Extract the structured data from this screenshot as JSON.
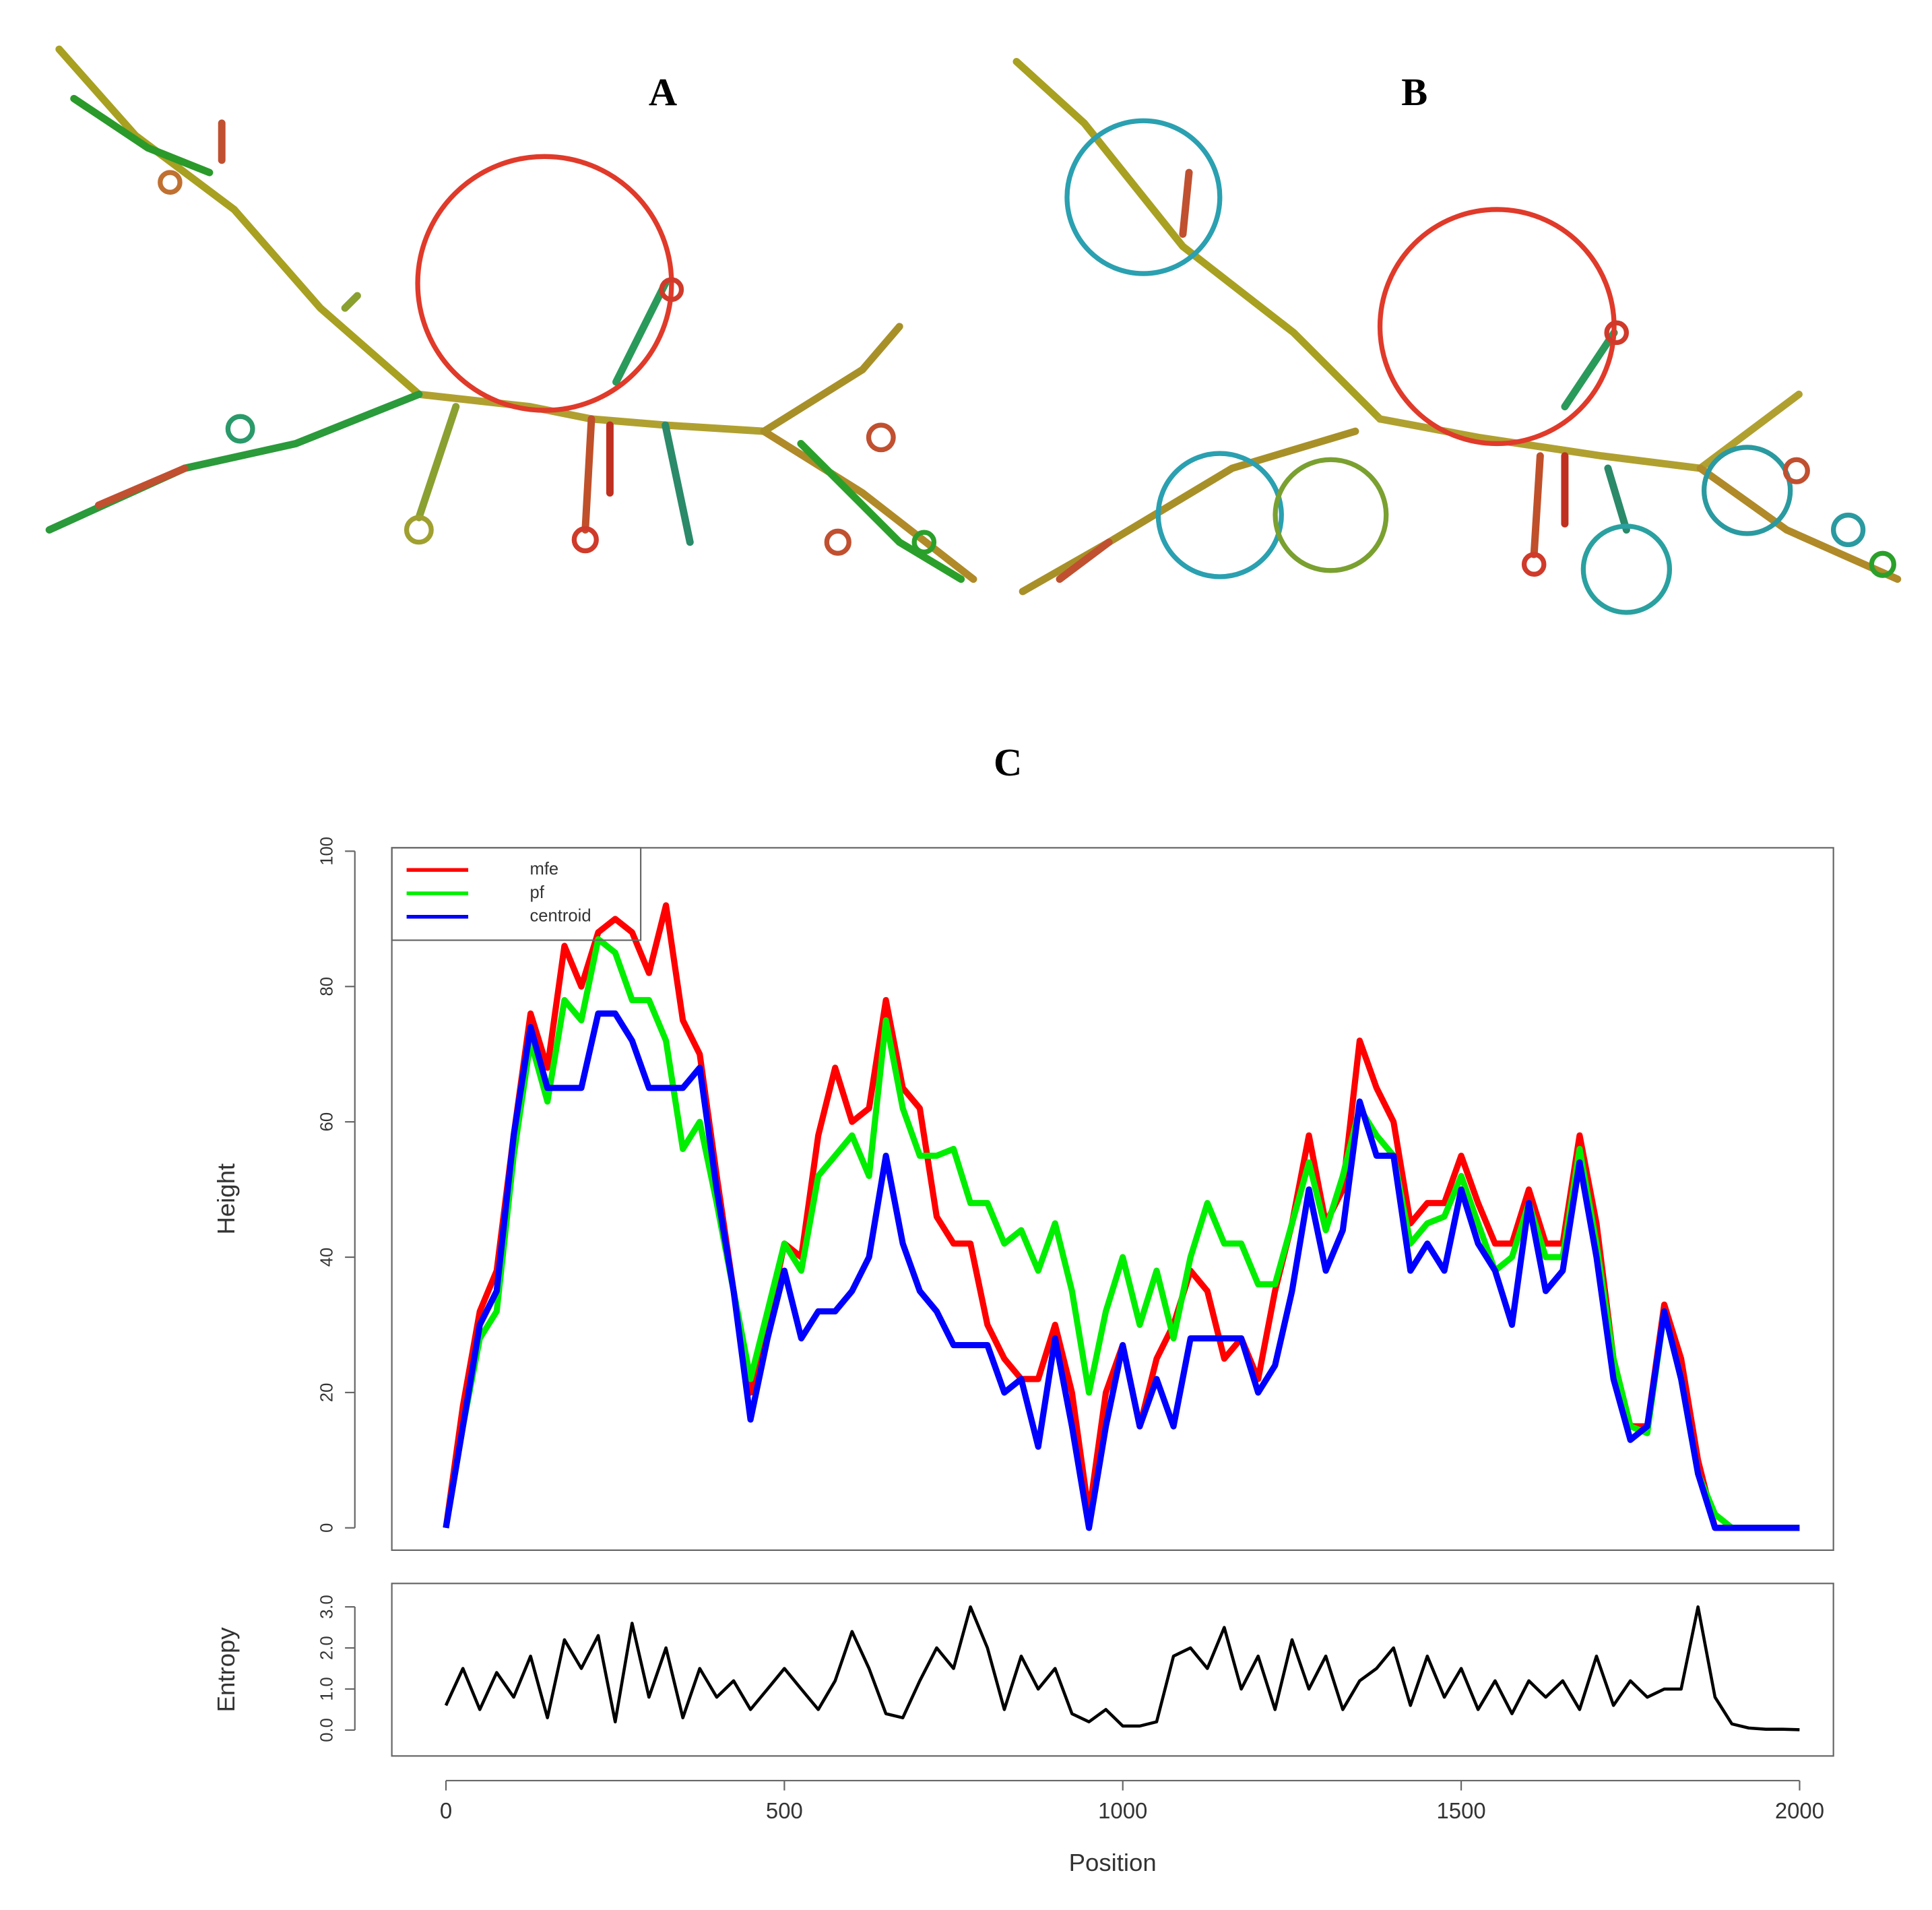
{
  "labels": [
    "A",
    "B",
    "C"
  ],
  "chart_data": [
    {
      "type": "line",
      "ylabel": "Height",
      "legend": "topleft",
      "xlim": [
        -80,
        2050
      ],
      "ylim": [
        -3.3,
        100.5
      ],
      "yticks": [
        0,
        20,
        40,
        60,
        80,
        100
      ],
      "x": [
        0,
        25,
        50,
        75,
        100,
        125,
        150,
        175,
        200,
        225,
        250,
        275,
        300,
        325,
        350,
        375,
        400,
        425,
        450,
        475,
        500,
        525,
        550,
        575,
        600,
        625,
        650,
        675,
        700,
        725,
        750,
        775,
        800,
        825,
        850,
        875,
        900,
        925,
        950,
        975,
        1000,
        1025,
        1050,
        1075,
        1100,
        1125,
        1150,
        1175,
        1200,
        1225,
        1250,
        1275,
        1300,
        1325,
        1350,
        1375,
        1400,
        1425,
        1450,
        1475,
        1500,
        1525,
        1550,
        1575,
        1600,
        1625,
        1650,
        1675,
        1700,
        1725,
        1750,
        1775,
        1800,
        1825,
        1850,
        1875,
        1900,
        1925,
        1950,
        1975,
        2000
      ],
      "series": [
        {
          "name": "mfe",
          "color": "#ff0000",
          "values": [
            0,
            18,
            32,
            38,
            58,
            76,
            68,
            86,
            80,
            88,
            90,
            88,
            82,
            92,
            75,
            70,
            52,
            35,
            20,
            30,
            42,
            40,
            58,
            68,
            60,
            62,
            78,
            65,
            62,
            46,
            42,
            42,
            30,
            25,
            22,
            22,
            30,
            20,
            2,
            20,
            27,
            15,
            25,
            30,
            38,
            35,
            25,
            28,
            22,
            35,
            45,
            58,
            45,
            50,
            72,
            65,
            60,
            45,
            48,
            48,
            55,
            48,
            42,
            42,
            50,
            42,
            42,
            58,
            45,
            25,
            15,
            15,
            33,
            25,
            10,
            0,
            0,
            0,
            0,
            0,
            0
          ]
        },
        {
          "name": "pf",
          "color": "#00ee00",
          "values": [
            0,
            15,
            28,
            32,
            55,
            72,
            63,
            78,
            75,
            87,
            85,
            78,
            78,
            72,
            56,
            60,
            48,
            35,
            22,
            32,
            42,
            38,
            52,
            55,
            58,
            52,
            75,
            62,
            55,
            55,
            56,
            48,
            48,
            42,
            44,
            38,
            45,
            35,
            20,
            32,
            40,
            30,
            38,
            28,
            40,
            48,
            42,
            42,
            36,
            36,
            45,
            54,
            44,
            52,
            62,
            58,
            55,
            42,
            45,
            46,
            52,
            45,
            38,
            40,
            48,
            40,
            40,
            56,
            42,
            25,
            15,
            14,
            32,
            22,
            8,
            2,
            0,
            0,
            0,
            0,
            0
          ]
        },
        {
          "name": "centroid",
          "color": "#0000ff",
          "values": [
            0,
            15,
            30,
            35,
            58,
            74,
            65,
            65,
            65,
            76,
            76,
            72,
            65,
            65,
            65,
            68,
            50,
            35,
            16,
            28,
            38,
            28,
            32,
            32,
            35,
            40,
            55,
            42,
            35,
            32,
            27,
            27,
            27,
            20,
            22,
            12,
            28,
            15,
            0,
            15,
            27,
            15,
            22,
            15,
            28,
            28,
            28,
            28,
            20,
            24,
            35,
            50,
            38,
            44,
            63,
            55,
            55,
            38,
            42,
            38,
            50,
            42,
            38,
            30,
            48,
            35,
            38,
            54,
            40,
            22,
            13,
            15,
            32,
            22,
            8,
            0,
            0,
            0,
            0,
            0,
            0
          ]
        }
      ]
    },
    {
      "type": "line",
      "ylabel": "Entropy",
      "xlabel": "Position",
      "xlim": [
        -80,
        2050
      ],
      "ylim": [
        -0.63,
        3.57
      ],
      "xticks": [
        0,
        500,
        1000,
        1500,
        2000
      ],
      "yticks": [
        {
          "value": 0,
          "label": "0.0"
        },
        {
          "value": 1,
          "label": "1.0"
        },
        {
          "value": 2,
          "label": "2.0"
        },
        {
          "value": 3,
          "label": "3.0"
        }
      ],
      "color": "#000000",
      "x": [
        0,
        25,
        50,
        75,
        100,
        125,
        150,
        175,
        200,
        225,
        250,
        275,
        300,
        325,
        350,
        375,
        400,
        425,
        450,
        475,
        500,
        525,
        550,
        575,
        600,
        625,
        650,
        675,
        700,
        725,
        750,
        775,
        800,
        825,
        850,
        875,
        900,
        925,
        950,
        975,
        1000,
        1025,
        1050,
        1075,
        1100,
        1125,
        1150,
        1175,
        1200,
        1225,
        1250,
        1275,
        1300,
        1325,
        1350,
        1375,
        1400,
        1425,
        1450,
        1475,
        1500,
        1525,
        1550,
        1575,
        1600,
        1625,
        1650,
        1675,
        1700,
        1725,
        1750,
        1775,
        1800,
        1825,
        1850,
        1875,
        1900,
        1925,
        1950,
        1975,
        2000
      ],
      "values": [
        0.6,
        1.5,
        0.5,
        1.4,
        0.8,
        1.8,
        0.3,
        2.2,
        1.5,
        2.3,
        0.2,
        2.6,
        0.8,
        2.0,
        0.3,
        1.5,
        0.8,
        1.2,
        0.5,
        1.0,
        1.5,
        1.0,
        0.5,
        1.2,
        2.4,
        1.5,
        0.4,
        0.3,
        1.2,
        2.0,
        1.5,
        3.0,
        2.0,
        0.5,
        1.8,
        1.0,
        1.5,
        0.4,
        0.2,
        0.5,
        0.1,
        0.1,
        0.2,
        1.8,
        2.0,
        1.5,
        2.5,
        1.0,
        1.8,
        0.5,
        2.2,
        1.0,
        1.8,
        0.5,
        1.2,
        1.5,
        2.0,
        0.6,
        1.8,
        0.8,
        1.5,
        0.5,
        1.2,
        0.4,
        1.2,
        0.8,
        1.2,
        0.5,
        1.8,
        0.6,
        1.2,
        0.8,
        1.0,
        1.0,
        3.0,
        0.8,
        0.15,
        0.05,
        0.02,
        0.02,
        0.01
      ]
    }
  ]
}
